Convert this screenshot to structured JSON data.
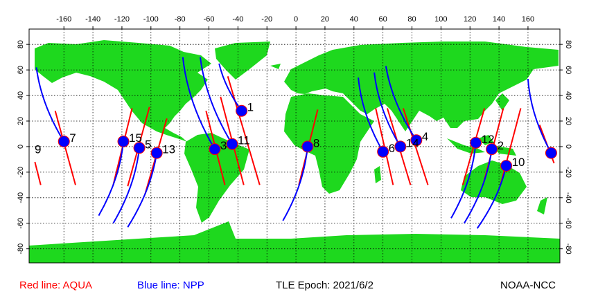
{
  "legend": {
    "aqua": "Red line: AQUA",
    "npp": "Blue line: NPP"
  },
  "epoch": "TLE Epoch: 2021/6/2",
  "credit": "NOAA-NCC",
  "map": {
    "xlim": [
      -184,
      182
    ],
    "ylim": [
      -91,
      92
    ],
    "xticks": [
      -160,
      -140,
      -120,
      -100,
      -80,
      -60,
      -40,
      -20,
      0,
      20,
      40,
      60,
      80,
      100,
      120,
      140,
      160
    ],
    "yticks": [
      -80,
      -60,
      -40,
      -20,
      0,
      20,
      40,
      60,
      80
    ],
    "grid": true,
    "land_color": "#1ed81e",
    "aqua_color": "#ff0000",
    "npp_color": "#0000ff",
    "marker_color": "#0000ff",
    "aqua_tracks": [
      [
        -180,
        -12,
        -176,
        -30
      ],
      [
        168,
        17,
        178,
        -13
      ],
      [
        -166,
        28,
        -152,
        -30
      ],
      [
        -113,
        30,
        -126,
        -30
      ],
      [
        -101,
        31,
        -116,
        -31
      ],
      [
        -89,
        22,
        -104,
        -37
      ],
      [
        -62,
        28,
        -49,
        -30
      ],
      [
        -52,
        39,
        -36,
        -30
      ],
      [
        -47,
        55,
        -25,
        -30
      ],
      [
        15,
        29,
        2,
        -30
      ],
      [
        55,
        30,
        67,
        -30
      ],
      [
        63,
        30,
        79,
        -30
      ],
      [
        74,
        30,
        91,
        -30
      ],
      [
        130,
        30,
        115,
        -30
      ],
      [
        143,
        30,
        129,
        -30
      ],
      [
        155,
        30,
        141,
        -30
      ]
    ],
    "passes": [
      {
        "label": "1",
        "lon": -37.5,
        "lat": 28,
        "npp_start": [
          -53,
          65
        ]
      },
      {
        "label": "2",
        "lon": 135,
        "lat": -2,
        "npp_start": [
          116,
          -60
        ]
      },
      {
        "label": "3",
        "lon": -56,
        "lat": -2,
        "npp_start": [
          -78,
          70
        ]
      },
      {
        "label": "4",
        "lon": 83,
        "lat": 5,
        "npp_start": [
          62,
          63
        ]
      },
      {
        "label": "5",
        "lon": -108,
        "lat": -1,
        "npp_start": [
          -126,
          -60
        ]
      },
      {
        "label": "6",
        "lon": 60,
        "lat": -4,
        "npp_start": [
          43,
          54
        ]
      },
      {
        "label": "7",
        "lon": -160,
        "lat": 4,
        "npp_start": [
          -179,
          62
        ]
      },
      {
        "label": "8",
        "lon": 8,
        "lat": 0,
        "npp_start": [
          -9,
          -58
        ]
      },
      {
        "label": "9",
        "lon": 176,
        "lat": -5,
        "npp_start": [
          160,
          53
        ]
      },
      {
        "label": "10",
        "lon": 145,
        "lat": -15,
        "npp_start": [
          125,
          -64
        ]
      },
      {
        "label": "11",
        "lon": -44,
        "lat": 2,
        "npp_start": [
          -66,
          70
        ]
      },
      {
        "label": "12",
        "lon": 124,
        "lat": 3,
        "npp_start": [
          107,
          -56
        ]
      },
      {
        "label": "13",
        "lon": -96,
        "lat": -5,
        "npp_start": [
          -116,
          -63
        ]
      },
      {
        "label": "14",
        "lon": 72,
        "lat": 0,
        "npp_start": [
          54,
          58
        ]
      },
      {
        "label": "15",
        "lon": -119,
        "lat": 4,
        "npp_start": [
          -136,
          -54
        ]
      }
    ]
  }
}
